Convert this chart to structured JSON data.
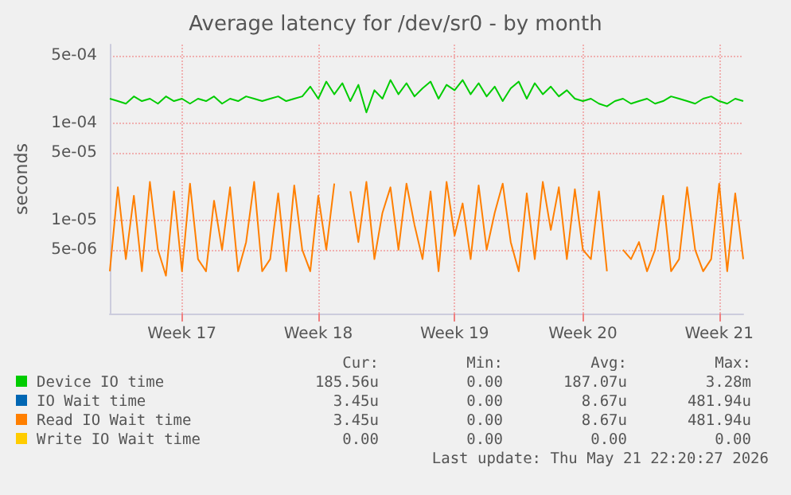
{
  "chart_data": {
    "type": "line",
    "title": "Average latency for /dev/sr0 - by month",
    "ylabel": "seconds",
    "log": true,
    "grid": true,
    "legend": "bottom",
    "marker": "none",
    "line_style": "solid",
    "categories": [
      null,
      null,
      null,
      null,
      null,
      null,
      null,
      null,
      null,
      "Week 17",
      null,
      null,
      null,
      null,
      null,
      null,
      null,
      null,
      null,
      null,
      null,
      null,
      null,
      null,
      null,
      null,
      "Week 18",
      null,
      null,
      null,
      null,
      null,
      null,
      null,
      null,
      null,
      null,
      null,
      null,
      null,
      null,
      null,
      null,
      "Week 19",
      null,
      null,
      null,
      null,
      null,
      null,
      null,
      null,
      null,
      null,
      null,
      null,
      null,
      null,
      null,
      "Week 20",
      null,
      null,
      null,
      null,
      null,
      null,
      null,
      null,
      null,
      null,
      null,
      null,
      null,
      null,
      null,
      null,
      "Week 21",
      null,
      null,
      null
    ],
    "ylim": [
      1.1e-06,
      0.00065
    ],
    "yticks": [
      {
        "value": 5e-06,
        "label": "5e-06"
      },
      {
        "value": 1e-05,
        "label": "1e-05"
      },
      {
        "value": 5e-05,
        "label": "5e-05"
      },
      {
        "value": 0.0001,
        "label": "1e-04"
      },
      {
        "value": 0.0005,
        "label": "5e-04"
      }
    ],
    "series": [
      {
        "name": "Device IO time",
        "color": "#00cc00",
        "values": [
          0.00018,
          0.00017,
          0.00016,
          0.00019,
          0.00017,
          0.00018,
          0.00016,
          0.00019,
          0.00017,
          0.00018,
          0.00016,
          0.00018,
          0.00017,
          0.00019,
          0.00016,
          0.00018,
          0.00017,
          0.00019,
          0.00018,
          0.00017,
          0.00018,
          0.00019,
          0.00017,
          0.00018,
          0.00019,
          0.00024,
          0.00018,
          0.00027,
          0.0002,
          0.00026,
          0.00017,
          0.00025,
          0.00013,
          0.00022,
          0.00018,
          0.00028,
          0.0002,
          0.00026,
          0.00019,
          0.00023,
          0.00027,
          0.00018,
          0.00025,
          0.00022,
          0.00028,
          0.0002,
          0.00026,
          0.00019,
          0.00024,
          0.00017,
          0.00023,
          0.00027,
          0.00018,
          0.00026,
          0.0002,
          0.00024,
          0.00019,
          0.00022,
          0.00018,
          0.00017,
          0.00018,
          0.00016,
          0.00015,
          0.00017,
          0.00018,
          0.00016,
          0.00017,
          0.00018,
          0.00016,
          0.00017,
          0.00019,
          0.00018,
          0.00017,
          0.00016,
          0.00018,
          0.00019,
          0.00017,
          0.00016,
          0.00018,
          0.00017
        ]
      },
      {
        "name": "IO Wait time",
        "color": "#0066b3",
        "values": [
          null,
          null,
          null,
          null,
          null,
          null,
          null,
          null,
          null,
          null,
          null,
          null,
          null,
          null,
          null,
          null,
          null,
          null,
          null,
          null,
          null,
          null,
          null,
          null,
          null,
          null,
          null,
          null,
          null,
          null,
          null,
          null,
          null,
          null,
          null,
          null,
          null,
          null,
          null,
          null,
          null,
          null,
          null,
          null,
          null,
          null,
          null,
          null,
          null,
          null,
          null,
          null,
          null,
          null,
          null,
          null,
          null,
          null,
          null,
          null,
          null,
          null,
          null,
          null,
          null,
          null,
          null,
          null,
          null,
          null,
          null,
          null,
          null,
          null,
          null,
          null,
          null,
          null,
          null,
          null
        ]
      },
      {
        "name": "Read IO Wait time",
        "color": "#ff7f00",
        "values": [
          3e-06,
          2.2e-05,
          4e-06,
          1.8e-05,
          3e-06,
          2.5e-05,
          5e-06,
          2.7e-06,
          2e-05,
          3e-06,
          2.4e-05,
          4e-06,
          3e-06,
          1.6e-05,
          5e-06,
          2.2e-05,
          3e-06,
          6e-06,
          2.5e-05,
          3e-06,
          4e-06,
          1.9e-05,
          3e-06,
          2.3e-05,
          5e-06,
          3e-06,
          1.8e-05,
          5e-06,
          2.4e-05,
          null,
          2e-05,
          6e-06,
          2.5e-05,
          4e-06,
          1.2e-05,
          2.2e-05,
          5e-06,
          2.4e-05,
          9e-06,
          4e-06,
          2e-05,
          3e-06,
          2.5e-05,
          7e-06,
          1.5e-05,
          4e-06,
          2.3e-05,
          5e-06,
          1.2e-05,
          2.4e-05,
          6e-06,
          3e-06,
          1.9e-05,
          4e-06,
          2.5e-05,
          8e-06,
          2.2e-05,
          4e-06,
          2.1e-05,
          5e-06,
          4e-06,
          2e-05,
          3e-06,
          null,
          5e-06,
          4e-06,
          6e-06,
          3e-06,
          5e-06,
          1.8e-05,
          3e-06,
          4e-06,
          2.2e-05,
          5e-06,
          3e-06,
          4e-06,
          2.4e-05,
          3e-06,
          1.9e-05,
          4e-06
        ]
      },
      {
        "name": "Write IO Wait time",
        "color": "#ffcc00",
        "values": [
          null,
          null,
          null,
          null,
          null,
          null,
          null,
          null,
          null,
          null,
          null,
          null,
          null,
          null,
          null,
          null,
          null,
          null,
          null,
          null,
          null,
          null,
          null,
          null,
          null,
          null,
          null,
          null,
          null,
          null,
          null,
          null,
          null,
          null,
          null,
          null,
          null,
          null,
          null,
          null,
          null,
          null,
          null,
          null,
          null,
          null,
          null,
          null,
          null,
          null,
          null,
          null,
          null,
          null,
          null,
          null,
          null,
          null,
          null,
          null,
          null,
          null,
          null,
          null,
          null,
          null,
          null,
          null,
          null,
          null,
          null,
          null,
          null,
          null,
          null,
          null,
          null,
          null,
          null,
          null
        ]
      }
    ],
    "annotations": [
      "Cur:",
      "Min:",
      "Avg:",
      "Max:",
      "185.56u",
      "0.00",
      "187.07u",
      "3.28m",
      "3.45u",
      "0.00",
      "8.67u",
      "481.94u",
      "3.45u",
      "0.00",
      "8.67u",
      "481.94u",
      "0.00",
      "0.00",
      "0.00",
      "0.00",
      "Last update: Thu May 21 22:20:27 2026"
    ]
  }
}
